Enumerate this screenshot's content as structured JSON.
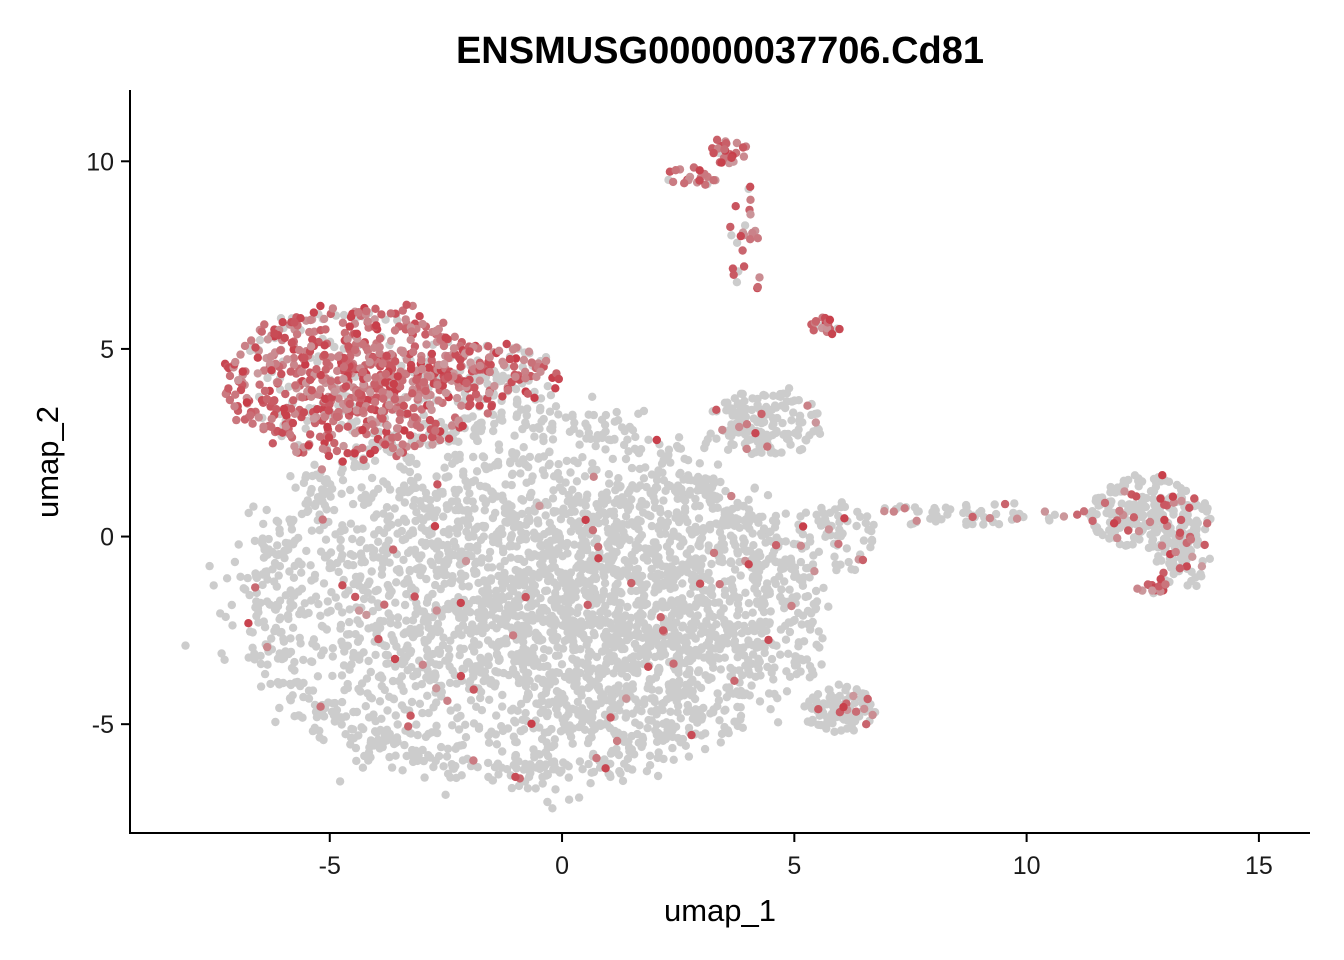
{
  "chart_data": {
    "type": "scatter",
    "title": "ENSMUSG00000037706.Cd81",
    "xlabel": "umap_1",
    "ylabel": "umap_2",
    "xlim": [
      -9.3,
      16.1
    ],
    "ylim": [
      -7.9,
      11.9
    ],
    "xticks": [
      -5,
      0,
      5,
      10,
      15
    ],
    "yticks": [
      -5,
      0,
      5,
      10
    ],
    "xtick_labels": [
      "-5",
      "0",
      "5",
      "10",
      "15"
    ],
    "ytick_labels": [
      "-5",
      "0",
      "5",
      "10"
    ],
    "grid": false,
    "legend": "none",
    "colors": {
      "low": "#cccccc",
      "high": "#c83c48"
    },
    "expression_color_scale": "grey-to-red (feature expression)",
    "clusters": [
      {
        "name": "",
        "cx": -1.0,
        "cy": -1.6,
        "sx": 3.7,
        "sy": 3.2,
        "expr": 0.02,
        "weight": 0.52
      },
      {
        "name": "",
        "cx": 2.2,
        "cy": -2.2,
        "sx": 2.2,
        "sy": 2.2,
        "expr": 0.02,
        "weight": 0.14
      },
      {
        "name": "",
        "cx": -4.4,
        "cy": 4.1,
        "sx": 1.75,
        "sy": 1.25,
        "expr": 0.85,
        "weight": 0.15
      },
      {
        "name": "",
        "cx": -1.6,
        "cy": 4.3,
        "sx": 1.0,
        "sy": 0.55,
        "expr": 0.6,
        "weight": 0.03
      },
      {
        "name": "",
        "cx": 4.3,
        "cy": 3.0,
        "sx": 0.8,
        "sy": 0.55,
        "expr": 0.05,
        "weight": 0.03
      },
      {
        "name": "",
        "cx": 6.0,
        "cy": -4.6,
        "sx": 0.5,
        "sy": 0.4,
        "expr": 0.05,
        "weight": 0.02
      },
      {
        "name": "",
        "cx": 12.6,
        "cy": 0.6,
        "sx": 0.85,
        "sy": 0.6,
        "expr": 0.12,
        "weight": 0.05
      },
      {
        "name": "",
        "cx": 13.3,
        "cy": -0.6,
        "sx": 0.35,
        "sy": 0.5,
        "expr": 0.1,
        "weight": 0.012
      },
      {
        "name": "",
        "cx": 8.8,
        "cy": 0.6,
        "sx": 1.6,
        "sy": 0.18,
        "expr": 0.25,
        "weight": 0.012
      },
      {
        "name": "",
        "cx": 5.9,
        "cy": 0.0,
        "sx": 0.55,
        "sy": 0.6,
        "expr": 0.15,
        "weight": 0.012
      },
      {
        "name": "",
        "cx": 3.6,
        "cy": 10.3,
        "sx": 0.25,
        "sy": 0.25,
        "expr": 0.9,
        "weight": 0.005
      },
      {
        "name": "",
        "cx": 4.0,
        "cy": 7.9,
        "sx": 0.25,
        "sy": 1.0,
        "expr": 0.8,
        "weight": 0.005
      },
      {
        "name": "",
        "cx": 2.8,
        "cy": 9.6,
        "sx": 0.4,
        "sy": 0.15,
        "expr": 0.9,
        "weight": 0.002
      },
      {
        "name": "",
        "cx": 5.7,
        "cy": 5.6,
        "sx": 0.2,
        "sy": 0.15,
        "expr": 0.8,
        "weight": 0.002
      },
      {
        "name": "",
        "cx": 12.7,
        "cy": -1.3,
        "sx": 0.2,
        "sy": 0.15,
        "expr": 0.7,
        "weight": 0.002
      }
    ]
  }
}
